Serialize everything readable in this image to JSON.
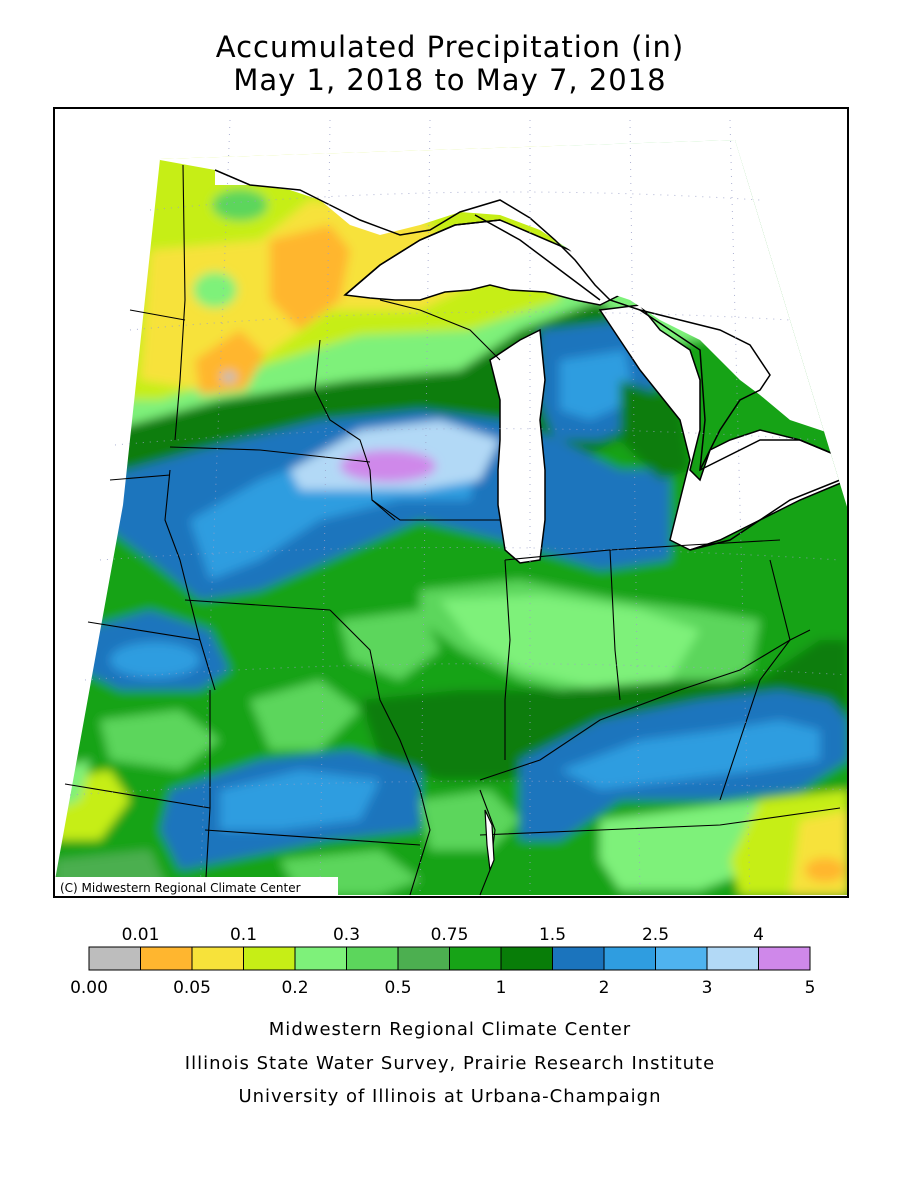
{
  "title": {
    "line1": "Accumulated Precipitation (in)",
    "line2": "May 1, 2018 to May 7, 2018"
  },
  "map": {
    "copyright": "(C) Midwestern Regional Climate Center",
    "region": "Upper Midwest / Great Lakes",
    "lake_color": "#ffffff"
  },
  "legend": {
    "colors": [
      "#bdbdbd",
      "#ffb62f",
      "#f7e23a",
      "#c6ee16",
      "#7ef17a",
      "#5cd65c",
      "#4caf50",
      "#17a317",
      "#087d08",
      "#1b74bd",
      "#2f9de0",
      "#4fb3ef",
      "#b2d9f6",
      "#cf88ea"
    ],
    "top_labels": [
      "0.01",
      "0.1",
      "0.3",
      "0.75",
      "1.5",
      "2.5",
      "4"
    ],
    "bottom_labels": [
      "0.00",
      "0.05",
      "0.2",
      "0.5",
      "1",
      "2",
      "3",
      "5"
    ]
  },
  "credits": {
    "line1": "Midwestern Regional Climate Center",
    "line2": "Illinois State Water Survey, Prairie Research Institute",
    "line3": "University of Illinois at Urbana-Champaign"
  }
}
